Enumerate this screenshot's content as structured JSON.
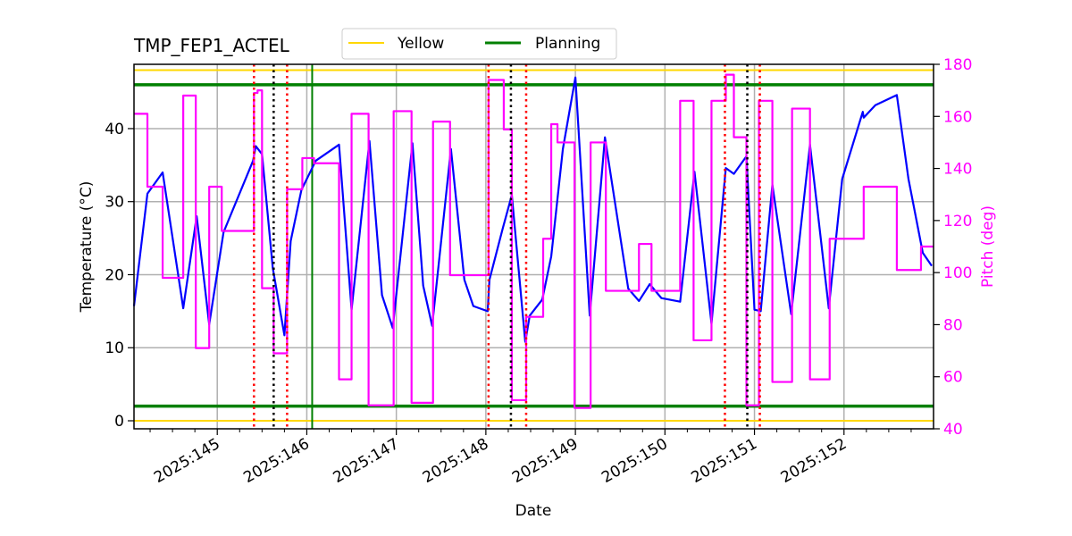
{
  "chart_data": {
    "type": "line",
    "title": "TMP_FEP1_ACTEL",
    "xlabel": "Date",
    "ylabel": "Temperature ($^\\circ$C)",
    "ylabel_display": "Temperature (°C)",
    "y2label": "Pitch (deg)",
    "xlim": [
      144.07,
      153.0
    ],
    "ylim": [
      -1.1,
      48.8
    ],
    "y2lim": [
      40,
      180
    ],
    "grid": true,
    "legend_placement": "top-center",
    "x_ticks": [
      {
        "value": 145,
        "label": "2025:145"
      },
      {
        "value": 146,
        "label": "2025:146"
      },
      {
        "value": 147,
        "label": "2025:147"
      },
      {
        "value": 148,
        "label": "2025:148"
      },
      {
        "value": 149,
        "label": "2025:149"
      },
      {
        "value": 150,
        "label": "2025:150"
      },
      {
        "value": 151,
        "label": "2025:151"
      },
      {
        "value": 152,
        "label": "2025:152"
      }
    ],
    "y_ticks": [
      0,
      10,
      20,
      30,
      40
    ],
    "y2_ticks": [
      40,
      60,
      80,
      100,
      120,
      140,
      160,
      180
    ],
    "legend": [
      {
        "name": "Yellow",
        "color": "#ffd700"
      },
      {
        "name": "Planning",
        "color": "#008000"
      }
    ],
    "limit_lines": [
      {
        "name": "Yellow",
        "values": [
          48,
          0
        ],
        "color": "#ffd700"
      },
      {
        "name": "Planning",
        "values": [
          46,
          2
        ],
        "color": "#008000"
      }
    ],
    "planning_vertical": {
      "x": 146.06,
      "color": "#008000"
    },
    "red_dotted_verticals": [
      145.41,
      145.78,
      148.03,
      148.45,
      150.67,
      151.06
    ],
    "black_dotted_verticals": [
      145.63,
      148.28,
      150.92
    ],
    "series": [
      {
        "name": "Temperature",
        "axis": "left",
        "color": "#0000ff",
        "points": [
          [
            144.07,
            15.7
          ],
          [
            144.22,
            31.1
          ],
          [
            144.39,
            34.0
          ],
          [
            144.62,
            15.4
          ],
          [
            144.77,
            28.0
          ],
          [
            144.91,
            13.2
          ],
          [
            145.07,
            25.8
          ],
          [
            145.4,
            35.6
          ],
          [
            145.43,
            37.6
          ],
          [
            145.5,
            36.5
          ],
          [
            145.62,
            20.9
          ],
          [
            145.75,
            11.7
          ],
          [
            145.82,
            24.6
          ],
          [
            145.94,
            31.6
          ],
          [
            146.1,
            35.6
          ],
          [
            146.36,
            37.8
          ],
          [
            146.5,
            15.2
          ],
          [
            146.7,
            38.3
          ],
          [
            146.84,
            17.2
          ],
          [
            146.96,
            12.7
          ],
          [
            147.18,
            38.0
          ],
          [
            147.3,
            18.5
          ],
          [
            147.4,
            13.0
          ],
          [
            147.61,
            37.2
          ],
          [
            147.76,
            19.3
          ],
          [
            147.86,
            15.7
          ],
          [
            148.02,
            15.0
          ],
          [
            148.04,
            19.3
          ],
          [
            148.19,
            26.4
          ],
          [
            148.29,
            30.9
          ],
          [
            148.44,
            10.8
          ],
          [
            148.49,
            14.4
          ],
          [
            148.63,
            16.6
          ],
          [
            148.73,
            22.5
          ],
          [
            148.86,
            37.2
          ],
          [
            149.0,
            47.0
          ],
          [
            149.16,
            14.4
          ],
          [
            149.33,
            38.8
          ],
          [
            149.59,
            18.1
          ],
          [
            149.71,
            16.4
          ],
          [
            149.83,
            18.7
          ],
          [
            149.96,
            16.8
          ],
          [
            150.17,
            16.3
          ],
          [
            150.33,
            34.1
          ],
          [
            150.52,
            13.3
          ],
          [
            150.68,
            34.6
          ],
          [
            150.77,
            33.8
          ],
          [
            150.91,
            36.2
          ],
          [
            151.0,
            15.2
          ],
          [
            151.07,
            15.0
          ],
          [
            151.2,
            32.3
          ],
          [
            151.41,
            14.6
          ],
          [
            151.62,
            37.8
          ],
          [
            151.83,
            15.4
          ],
          [
            151.98,
            33.1
          ],
          [
            152.21,
            42.3
          ],
          [
            152.22,
            41.5
          ],
          [
            152.35,
            43.2
          ],
          [
            152.59,
            44.6
          ],
          [
            152.72,
            33.1
          ],
          [
            152.88,
            23.0
          ],
          [
            152.98,
            21.2
          ]
        ]
      },
      {
        "name": "Pitch",
        "axis": "right",
        "color": "#ff00ff",
        "step": "post",
        "points": [
          [
            144.07,
            161
          ],
          [
            144.22,
            133
          ],
          [
            144.39,
            98
          ],
          [
            144.62,
            168
          ],
          [
            144.76,
            71
          ],
          [
            144.91,
            133
          ],
          [
            145.05,
            116
          ],
          [
            145.41,
            169
          ],
          [
            145.45,
            170
          ],
          [
            145.5,
            94
          ],
          [
            145.63,
            69
          ],
          [
            145.78,
            132
          ],
          [
            145.95,
            144
          ],
          [
            146.08,
            142
          ],
          [
            146.36,
            59
          ],
          [
            146.5,
            161
          ],
          [
            146.69,
            49
          ],
          [
            146.97,
            162
          ],
          [
            147.17,
            50
          ],
          [
            147.41,
            158
          ],
          [
            147.6,
            99
          ],
          [
            148.03,
            174
          ],
          [
            148.2,
            155
          ],
          [
            148.29,
            51
          ],
          [
            148.45,
            83
          ],
          [
            148.64,
            113
          ],
          [
            148.73,
            157
          ],
          [
            148.8,
            150
          ],
          [
            148.99,
            48
          ],
          [
            149.17,
            150
          ],
          [
            149.34,
            93
          ],
          [
            149.71,
            111
          ],
          [
            149.85,
            93
          ],
          [
            150.17,
            166
          ],
          [
            150.32,
            74
          ],
          [
            150.52,
            166
          ],
          [
            150.68,
            176
          ],
          [
            150.77,
            152
          ],
          [
            150.91,
            49
          ],
          [
            151.05,
            166
          ],
          [
            151.2,
            58
          ],
          [
            151.42,
            163
          ],
          [
            151.62,
            59
          ],
          [
            151.84,
            113
          ],
          [
            152.22,
            133
          ],
          [
            152.59,
            101
          ],
          [
            152.86,
            110
          ],
          [
            153.0,
            110
          ]
        ]
      }
    ]
  }
}
